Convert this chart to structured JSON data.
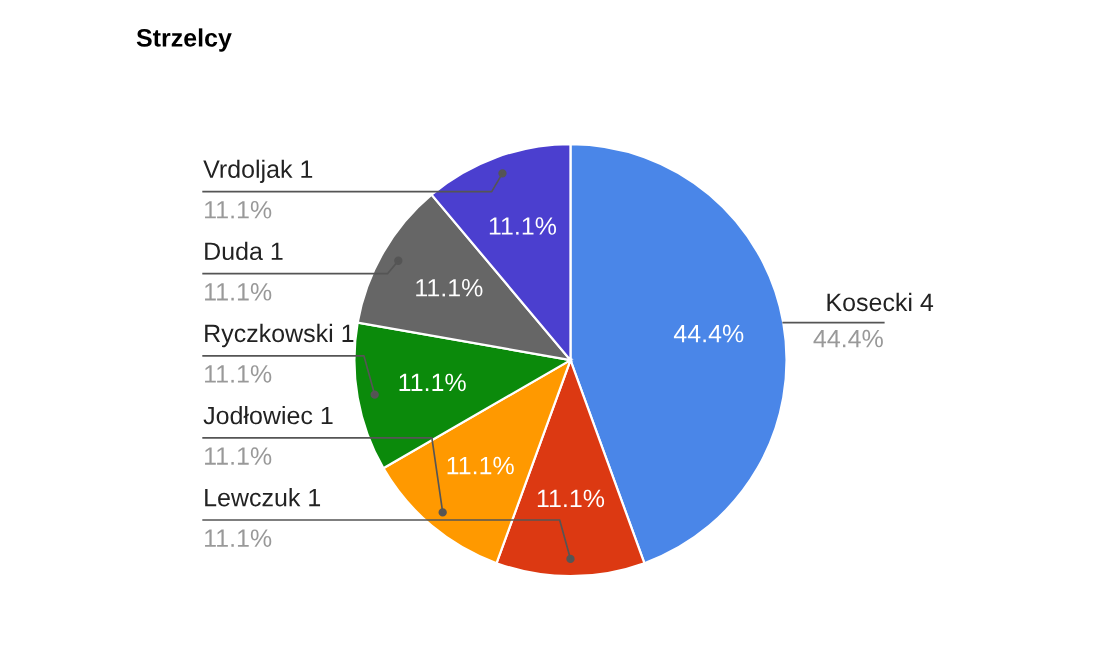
{
  "chart_data": {
    "type": "pie",
    "title": "Strzelcy",
    "categories": [
      "Kosecki 4",
      "Lewczuk 1",
      "Jodłowiec 1",
      "Ryczkowski 1",
      "Duda 1",
      "Vrdoljak 1"
    ],
    "values": [
      44.4,
      11.1,
      11.1,
      11.1,
      11.1,
      11.1
    ],
    "value_labels": [
      "44.4%",
      "11.1%",
      "11.1%",
      "11.1%",
      "11.1%",
      "11.1%"
    ],
    "colors": [
      "#4a86e8",
      "#dc3912",
      "#ff9900",
      "#0b8a0b",
      "#666666",
      "#4b3fcf"
    ],
    "legend": false
  }
}
